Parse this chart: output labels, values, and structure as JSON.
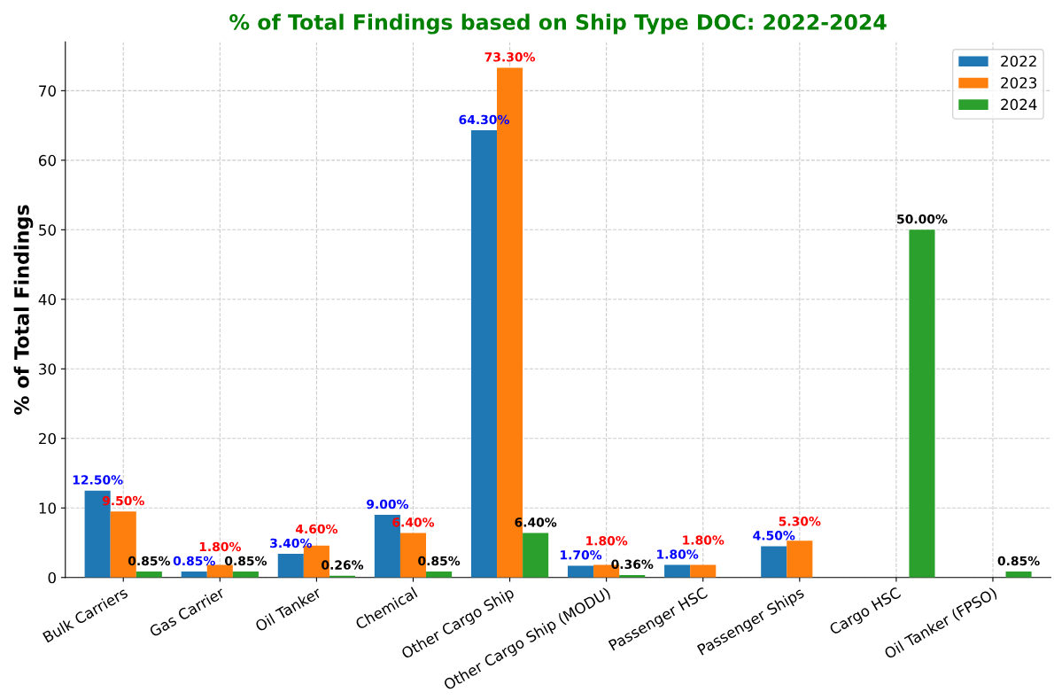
{
  "chart_data": {
    "type": "bar",
    "title": "% of Total Findings based on Ship Type DOC: 2022-2024",
    "ylabel": "% of Total Findings",
    "categories": [
      "Bulk Carriers",
      "Gas Carrier",
      "Oil Tanker",
      "Chemical",
      "Other Cargo Ship",
      "Other Cargo Ship (MODU)",
      "Passenger HSC",
      "Passenger Ships",
      "Cargo HSC",
      "Oil Tanker (FPSO)"
    ],
    "series": [
      {
        "name": "2022",
        "color": "#1f77b4",
        "values": [
          12.5,
          0.85,
          3.4,
          9.0,
          64.3,
          1.7,
          1.8,
          4.5,
          null,
          null
        ],
        "value_labels": [
          "12.50%",
          "0.85%",
          "3.40%",
          "9.00%",
          "64.30%",
          "1.70%",
          "1.80%",
          "4.50%",
          null,
          null
        ]
      },
      {
        "name": "2023",
        "color": "#ff7f0e",
        "values": [
          9.5,
          1.8,
          4.6,
          6.4,
          73.3,
          1.8,
          1.8,
          5.3,
          null,
          null
        ],
        "value_labels": [
          "9.50%",
          "1.80%",
          "4.60%",
          "6.40%",
          "73.30%",
          "1.80%",
          "1.80%",
          "5.30%",
          null,
          null
        ]
      },
      {
        "name": "2024",
        "color": "#2ca02c",
        "values": [
          0.85,
          0.85,
          0.26,
          0.85,
          6.4,
          0.36,
          null,
          null,
          50.0,
          0.85
        ],
        "value_labels": [
          "0.85%",
          "0.85%",
          "0.26%",
          "0.85%",
          "6.40%",
          "0.36%",
          null,
          null,
          "50.00%",
          "0.85%"
        ]
      }
    ],
    "ylim": [
      0,
      77
    ],
    "yticks": [
      0,
      10,
      20,
      30,
      40,
      50,
      60,
      70
    ],
    "grid": true,
    "legend": "top right"
  }
}
